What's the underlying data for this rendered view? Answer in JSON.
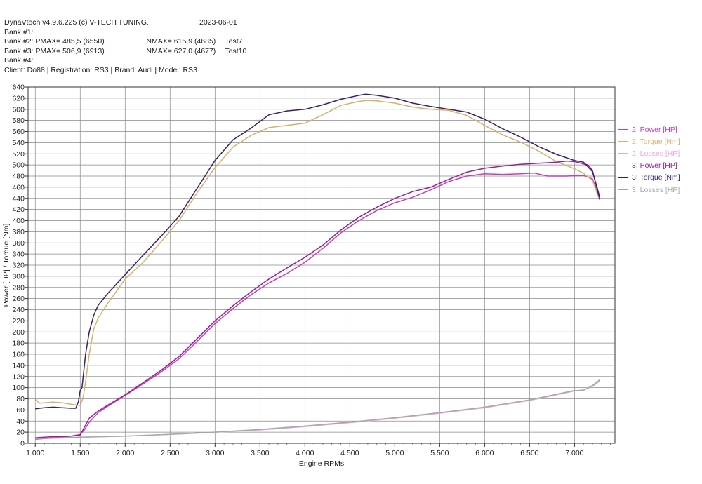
{
  "header": {
    "app_title": "DynaVtech v4.9.6.225 (c) V-TECH TUNING.",
    "date": "2023-06-01",
    "bank1": "Bank #1:",
    "bank2_label": "Bank #2:",
    "bank2_pmax": "PMAX= 485,5 (6550)",
    "bank2_nmax": "NMAX= 615,9 (4685)",
    "bank2_name": "Test7",
    "bank3_label": "Bank #3:",
    "bank3_pmax": "PMAX= 506,9 (6913)",
    "bank3_nmax": "NMAX= 627,0 (4677)",
    "bank3_name": "Test10",
    "bank4": "Bank #4:",
    "client": "Client: Do88 | Registration: RS3 | Brand: Audi | Model: RS3"
  },
  "chart_data": {
    "type": "line",
    "xlabel": "Engine RPMs",
    "ylabel": "Power [HP] / Torque [Nm]",
    "xlim": [
      920,
      7450
    ],
    "ylim": [
      0,
      640
    ],
    "x_ticks": [
      1000,
      1500,
      2000,
      2500,
      3000,
      3500,
      4000,
      4500,
      5000,
      5500,
      6000,
      6500,
      7000
    ],
    "x_tick_labels": [
      "1.000",
      "1.500",
      "2.000",
      "2.500",
      "3.000",
      "3.500",
      "4.000",
      "4.500",
      "5.000",
      "5.500",
      "6.000",
      "6.500",
      "7.000"
    ],
    "y_ticks": [
      0,
      20,
      40,
      60,
      80,
      100,
      120,
      140,
      160,
      180,
      200,
      220,
      240,
      260,
      280,
      300,
      320,
      340,
      360,
      380,
      400,
      420,
      440,
      460,
      480,
      500,
      520,
      540,
      560,
      580,
      600,
      620,
      640
    ],
    "grid": true,
    "legend_position": "right",
    "series": [
      {
        "name": "2: Power [HP]",
        "color": "#c43fbd",
        "points": [
          [
            1000,
            7
          ],
          [
            1200,
            10
          ],
          [
            1400,
            13
          ],
          [
            1500,
            16
          ],
          [
            1550,
            25
          ],
          [
            1600,
            38
          ],
          [
            1700,
            55
          ],
          [
            1800,
            66
          ],
          [
            2000,
            86
          ],
          [
            2200,
            107
          ],
          [
            2400,
            128
          ],
          [
            2600,
            152
          ],
          [
            2800,
            183
          ],
          [
            3000,
            215
          ],
          [
            3200,
            242
          ],
          [
            3400,
            267
          ],
          [
            3600,
            288
          ],
          [
            3800,
            305
          ],
          [
            4000,
            325
          ],
          [
            4200,
            350
          ],
          [
            4400,
            378
          ],
          [
            4600,
            400
          ],
          [
            4800,
            418
          ],
          [
            5000,
            432
          ],
          [
            5200,
            442
          ],
          [
            5400,
            455
          ],
          [
            5600,
            470
          ],
          [
            5800,
            480
          ],
          [
            6000,
            484
          ],
          [
            6200,
            483
          ],
          [
            6400,
            484
          ],
          [
            6500,
            485
          ],
          [
            6550,
            485.5
          ],
          [
            6700,
            480
          ],
          [
            6900,
            480
          ],
          [
            7100,
            481
          ],
          [
            7200,
            475
          ],
          [
            7280,
            442
          ]
        ]
      },
      {
        "name": "2: Torque [Nm]",
        "color": "#d8b06a",
        "points": [
          [
            1000,
            79
          ],
          [
            1050,
            72
          ],
          [
            1100,
            73
          ],
          [
            1200,
            74
          ],
          [
            1300,
            73
          ],
          [
            1400,
            70
          ],
          [
            1500,
            68
          ],
          [
            1530,
            80
          ],
          [
            1560,
            110
          ],
          [
            1600,
            160
          ],
          [
            1650,
            205
          ],
          [
            1700,
            225
          ],
          [
            1800,
            250
          ],
          [
            2000,
            295
          ],
          [
            2200,
            325
          ],
          [
            2400,
            362
          ],
          [
            2600,
            400
          ],
          [
            2800,
            450
          ],
          [
            3000,
            495
          ],
          [
            3200,
            532
          ],
          [
            3400,
            553
          ],
          [
            3600,
            567
          ],
          [
            3800,
            571
          ],
          [
            4000,
            575
          ],
          [
            4200,
            590
          ],
          [
            4400,
            607
          ],
          [
            4600,
            614
          ],
          [
            4685,
            615.9
          ],
          [
            4800,
            615
          ],
          [
            5000,
            611
          ],
          [
            5200,
            604
          ],
          [
            5400,
            600
          ],
          [
            5600,
            598
          ],
          [
            5800,
            589
          ],
          [
            6000,
            571
          ],
          [
            6200,
            554
          ],
          [
            6400,
            541
          ],
          [
            6600,
            525
          ],
          [
            6800,
            506
          ],
          [
            7000,
            493
          ],
          [
            7100,
            485
          ],
          [
            7200,
            472
          ],
          [
            7280,
            437
          ]
        ]
      },
      {
        "name": "2: Losses [HP]",
        "color": "#e8a8e0",
        "points": [
          [
            1000,
            8
          ],
          [
            1500,
            11
          ],
          [
            2000,
            13
          ],
          [
            2500,
            16
          ],
          [
            3000,
            20
          ],
          [
            3500,
            24
          ],
          [
            4000,
            30
          ],
          [
            4500,
            37
          ],
          [
            5000,
            45
          ],
          [
            5500,
            54
          ],
          [
            6000,
            64
          ],
          [
            6500,
            77
          ],
          [
            7000,
            94
          ],
          [
            7100,
            96
          ],
          [
            7200,
            102
          ],
          [
            7280,
            112
          ]
        ]
      },
      {
        "name": "3: Power [HP]",
        "color": "#9a1f92",
        "points": [
          [
            1000,
            10
          ],
          [
            1200,
            12
          ],
          [
            1400,
            13
          ],
          [
            1500,
            15
          ],
          [
            1550,
            30
          ],
          [
            1600,
            45
          ],
          [
            1700,
            58
          ],
          [
            1800,
            68
          ],
          [
            2000,
            87
          ],
          [
            2200,
            109
          ],
          [
            2400,
            131
          ],
          [
            2600,
            156
          ],
          [
            2800,
            188
          ],
          [
            3000,
            220
          ],
          [
            3200,
            247
          ],
          [
            3400,
            272
          ],
          [
            3600,
            295
          ],
          [
            3800,
            315
          ],
          [
            4000,
            334
          ],
          [
            4200,
            356
          ],
          [
            4400,
            383
          ],
          [
            4600,
            406
          ],
          [
            4800,
            424
          ],
          [
            5000,
            440
          ],
          [
            5200,
            452
          ],
          [
            5400,
            460
          ],
          [
            5600,
            474
          ],
          [
            5800,
            487
          ],
          [
            6000,
            494
          ],
          [
            6200,
            498
          ],
          [
            6400,
            501
          ],
          [
            6600,
            503
          ],
          [
            6800,
            505
          ],
          [
            6913,
            506.9
          ],
          [
            7000,
            506
          ],
          [
            7150,
            500
          ],
          [
            7200,
            490
          ],
          [
            7280,
            438
          ]
        ]
      },
      {
        "name": "3: Torque [Nm]",
        "color": "#3a1f66",
        "points": [
          [
            1000,
            62
          ],
          [
            1100,
            64
          ],
          [
            1200,
            65
          ],
          [
            1300,
            64
          ],
          [
            1400,
            63
          ],
          [
            1450,
            63
          ],
          [
            1480,
            75
          ],
          [
            1500,
            95
          ],
          [
            1520,
            100
          ],
          [
            1560,
            160
          ],
          [
            1600,
            200
          ],
          [
            1650,
            230
          ],
          [
            1700,
            248
          ],
          [
            1800,
            268
          ],
          [
            2000,
            303
          ],
          [
            2200,
            338
          ],
          [
            2400,
            372
          ],
          [
            2600,
            408
          ],
          [
            2800,
            458
          ],
          [
            3000,
            508
          ],
          [
            3200,
            545
          ],
          [
            3400,
            566
          ],
          [
            3600,
            590
          ],
          [
            3800,
            597
          ],
          [
            4000,
            600
          ],
          [
            4200,
            608
          ],
          [
            4400,
            618
          ],
          [
            4600,
            625
          ],
          [
            4677,
            627.0
          ],
          [
            4800,
            625
          ],
          [
            5000,
            620
          ],
          [
            5200,
            611
          ],
          [
            5400,
            605
          ],
          [
            5600,
            600
          ],
          [
            5800,
            595
          ],
          [
            6000,
            582
          ],
          [
            6200,
            565
          ],
          [
            6400,
            550
          ],
          [
            6600,
            533
          ],
          [
            6800,
            519
          ],
          [
            7000,
            508
          ],
          [
            7100,
            505
          ],
          [
            7200,
            488
          ],
          [
            7280,
            443
          ]
        ]
      },
      {
        "name": "3: Losses [HP]",
        "color": "#a8a8a8",
        "points": [
          [
            1000,
            8
          ],
          [
            1500,
            11
          ],
          [
            2000,
            13
          ],
          [
            2500,
            16
          ],
          [
            3000,
            20
          ],
          [
            3500,
            25
          ],
          [
            4000,
            31
          ],
          [
            4500,
            38
          ],
          [
            5000,
            46
          ],
          [
            5500,
            55
          ],
          [
            6000,
            65
          ],
          [
            6500,
            78
          ],
          [
            7000,
            95
          ],
          [
            7100,
            95
          ],
          [
            7200,
            104
          ],
          [
            7280,
            114
          ]
        ]
      }
    ]
  }
}
